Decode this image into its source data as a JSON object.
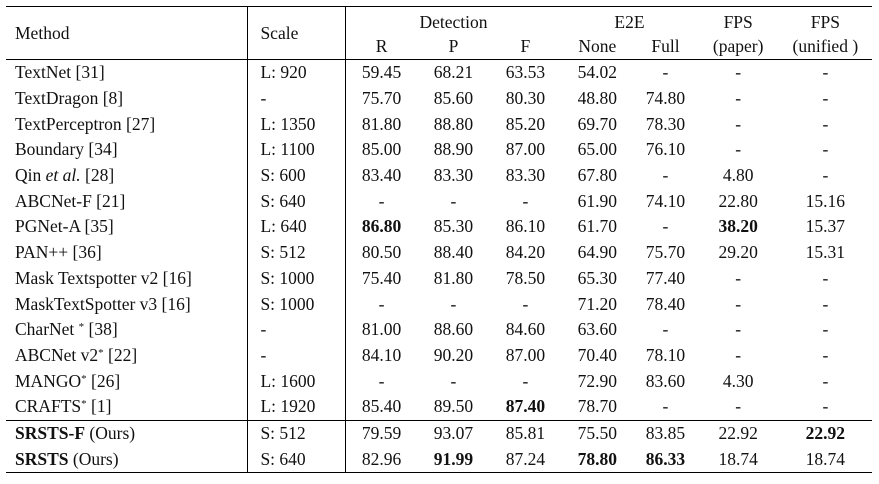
{
  "header": {
    "method": "Method",
    "scale": "Scale",
    "detection": "Detection",
    "e2e": "E2E",
    "fps_paper_l1": "FPS",
    "fps_paper_l2": "(paper)",
    "fps_unified_l1": "FPS",
    "fps_unified_l2": "(unified )",
    "r": "R",
    "p": "P",
    "f": "F",
    "none": "None",
    "full": "Full"
  },
  "rows": [
    {
      "method": "TextNet [31]",
      "scale": "L: 920",
      "r": "59.45",
      "p": "68.21",
      "f": "63.53",
      "none": "54.02",
      "full": "-",
      "fps_paper": "-",
      "fps_unified": "-"
    },
    {
      "method": "TextDragon [8]",
      "scale": "-",
      "r": "75.70",
      "p": "85.60",
      "f": "80.30",
      "none": "48.80",
      "full": "74.80",
      "fps_paper": "-",
      "fps_unified": "-"
    },
    {
      "method": "TextPerceptron [27]",
      "scale": "L: 1350",
      "r": "81.80",
      "p": "88.80",
      "f": "85.20",
      "none": "69.70",
      "full": "78.30",
      "fps_paper": "-",
      "fps_unified": "-"
    },
    {
      "method": "Boundary [34]",
      "scale": "L: 1100",
      "r": "85.00",
      "p": "88.90",
      "f": "87.00",
      "none": "65.00",
      "full": "76.10",
      "fps_paper": "-",
      "fps_unified": "-"
    },
    {
      "method_pre": "Qin ",
      "method_it": "et al.",
      "method_post": " [28]",
      "scale": "S: 600",
      "r": "83.40",
      "p": "83.30",
      "f": "83.30",
      "none": "67.80",
      "full": "-",
      "fps_paper": "4.80",
      "fps_unified": "-"
    },
    {
      "method": "ABCNet-F [21]",
      "scale": "S: 640",
      "r": "-",
      "p": "-",
      "f": "-",
      "none": "61.90",
      "full": "74.10",
      "fps_paper": "22.80",
      "fps_unified": "15.16"
    },
    {
      "method": "PGNet-A [35]",
      "scale": "L: 640",
      "r": "86.80",
      "p": "85.30",
      "f": "86.10",
      "none": "61.70",
      "full": "-",
      "fps_paper": "38.20",
      "fps_unified": "15.37"
    },
    {
      "method": "PAN++ [36]",
      "scale": "S: 512",
      "r": "80.50",
      "p": "88.40",
      "f": "84.20",
      "none": "64.90",
      "full": "75.70",
      "fps_paper": "29.20",
      "fps_unified": "15.31"
    },
    {
      "method": "Mask Textspotter v2 [16]",
      "scale": "S: 1000",
      "r": "75.40",
      "p": "81.80",
      "f": "78.50",
      "none": "65.30",
      "full": "77.40",
      "fps_paper": "-",
      "fps_unified": "-"
    },
    {
      "method": "MaskTextSpotter v3 [16]",
      "scale": "S: 1000",
      "r": "-",
      "p": "-",
      "f": "-",
      "none": "71.20",
      "full": "78.40",
      "fps_paper": "-",
      "fps_unified": "-"
    },
    {
      "method_pre": "CharNet ",
      "method_sup": "*",
      "method_post": " [38]",
      "scale": "-",
      "r": "81.00",
      "p": "88.60",
      "f": "84.60",
      "none": "63.60",
      "full": "-",
      "fps_paper": "-",
      "fps_unified": "-"
    },
    {
      "method_pre": "ABCNet v2",
      "method_sup": "*",
      "method_post": " [22]",
      "scale": "-",
      "r": "84.10",
      "p": "90.20",
      "f": "87.00",
      "none": "70.40",
      "full": "78.10",
      "fps_paper": "-",
      "fps_unified": "-"
    },
    {
      "method_pre": "MANGO",
      "method_sup": "*",
      "method_post": " [26]",
      "scale": "L: 1600",
      "r": "-",
      "p": "-",
      "f": "-",
      "none": "72.90",
      "full": "83.60",
      "fps_paper": "4.30",
      "fps_unified": "-"
    },
    {
      "method_pre": "CRAFTS",
      "method_sup": "*",
      "method_post": " [1]",
      "scale": "L: 1920",
      "r": "85.40",
      "p": "89.50",
      "f": "87.40",
      "none": "78.70",
      "full": "-",
      "fps_paper": "-",
      "fps_unified": "-"
    },
    {
      "method_bold": "SRSTS-F",
      "method_post": " (Ours)",
      "scale": "S: 512",
      "r": "79.59",
      "p": "93.07",
      "f": "85.81",
      "none": "75.50",
      "full": "83.85",
      "fps_paper": "22.92",
      "fps_unified": "22.92"
    },
    {
      "method_bold": "SRSTS",
      "method_post": " (Ours)",
      "scale": "S: 640",
      "r": "82.96",
      "p": "91.99",
      "f": "87.24",
      "none": "78.80",
      "full": "86.33",
      "fps_paper": "18.74",
      "fps_unified": "18.74"
    }
  ]
}
